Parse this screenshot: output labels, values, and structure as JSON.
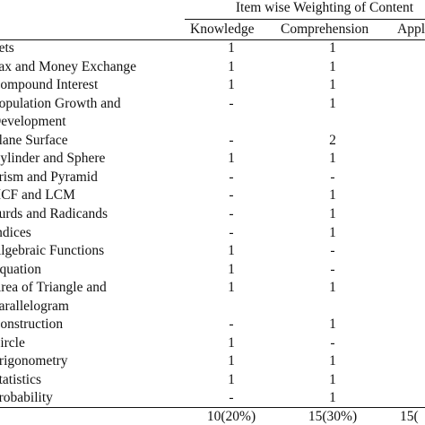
{
  "table": {
    "group_header": "Item wise Weighting of Content",
    "columns": [
      "Knowledge",
      "Comprehension",
      "Appl"
    ],
    "rows": [
      {
        "topic": "Sets",
        "knowledge": "1",
        "comprehension": "1"
      },
      {
        "topic": "Tax and Money Exchange",
        "knowledge": "1",
        "comprehension": "1"
      },
      {
        "topic": "Compound Interest",
        "knowledge": "1",
        "comprehension": "1"
      },
      {
        "topic": "Population Growth and",
        "knowledge": "-",
        "comprehension": "1"
      },
      {
        "topic": "Development",
        "knowledge": "",
        "comprehension": ""
      },
      {
        "topic": "Plane Surface",
        "knowledge": "-",
        "comprehension": "2"
      },
      {
        "topic": "Cylinder and Sphere",
        "knowledge": "1",
        "comprehension": "1"
      },
      {
        "topic": "Prism and Pyramid",
        "knowledge": "-",
        "comprehension": "-"
      },
      {
        "topic": "HCF and LCM",
        "knowledge": "-",
        "comprehension": "1"
      },
      {
        "topic": "Surds and Radicands",
        "knowledge": "-",
        "comprehension": "1"
      },
      {
        "topic": "Indices",
        "knowledge": "-",
        "comprehension": "1"
      },
      {
        "topic": "Algebraic Functions",
        "knowledge": "1",
        "comprehension": "-"
      },
      {
        "topic": "Equation",
        "knowledge": "1",
        "comprehension": "-"
      },
      {
        "topic": "Area of Triangle and",
        "knowledge": "1",
        "comprehension": "1"
      },
      {
        "topic": "Parallelogram",
        "knowledge": "",
        "comprehension": ""
      },
      {
        "topic": "Construction",
        "knowledge": "-",
        "comprehension": "1"
      },
      {
        "topic": "Circle",
        "knowledge": "1",
        "comprehension": "-"
      },
      {
        "topic": "Trigonometry",
        "knowledge": "1",
        "comprehension": "1"
      },
      {
        "topic": "Statistics",
        "knowledge": "1",
        "comprehension": "1"
      },
      {
        "topic": "Probability",
        "knowledge": "-",
        "comprehension": "1"
      }
    ],
    "totals": {
      "knowledge": "10(20%)",
      "comprehension": "15(30%)",
      "application": "15("
    }
  }
}
